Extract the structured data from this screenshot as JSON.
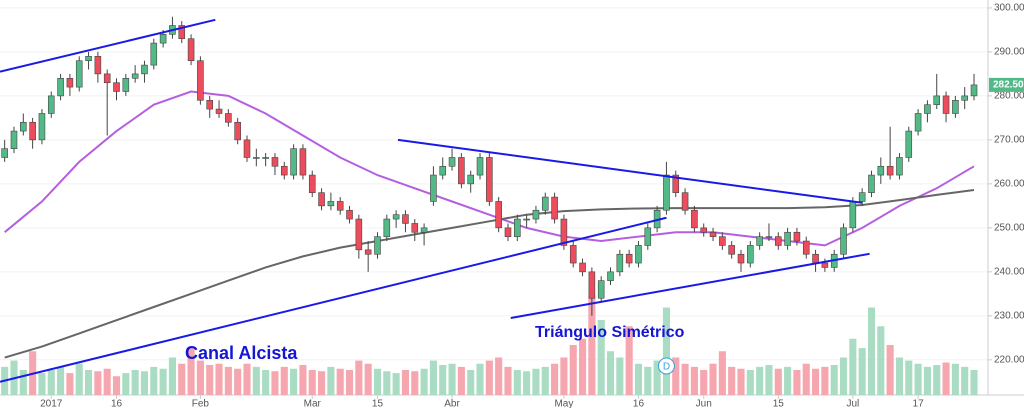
{
  "chart_data": {
    "type": "candlestick",
    "xlim": [
      -0.5,
      105.5
    ],
    "xticks": [
      {
        "value": 5,
        "label": "2017"
      },
      {
        "value": 12,
        "label": "16"
      },
      {
        "value": 21,
        "label": "Feb"
      },
      {
        "value": 33,
        "label": "Mar"
      },
      {
        "value": 40,
        "label": "15"
      },
      {
        "value": 48,
        "label": "Abr"
      },
      {
        "value": 60,
        "label": "May"
      },
      {
        "value": 68,
        "label": "16"
      },
      {
        "value": 75,
        "label": "Jun"
      },
      {
        "value": 83,
        "label": "15"
      },
      {
        "value": 91,
        "label": "Jul"
      },
      {
        "value": 98,
        "label": "17"
      }
    ],
    "ylim": [
      212,
      301.8
    ],
    "yticks": [
      {
        "value": 220,
        "label": "220.00"
      },
      {
        "value": 230,
        "label": "230.00"
      },
      {
        "value": 240,
        "label": "240.00"
      },
      {
        "value": 250,
        "label": "250.00"
      },
      {
        "value": 260,
        "label": "260.00"
      },
      {
        "value": 270,
        "label": "270.00"
      },
      {
        "value": 280,
        "label": "280.00"
      },
      {
        "value": 290,
        "label": "290.00"
      },
      {
        "value": 300,
        "label": "300.00"
      }
    ],
    "grid": true,
    "up_color": "#53b987",
    "down_color": "#eb4d5c",
    "volume_up_color": "#a9dcc3",
    "volume_down_color": "#f5a6ae",
    "ohlc": [
      [
        266,
        270,
        265,
        268
      ],
      [
        268,
        273,
        267,
        272
      ],
      [
        272,
        276,
        271,
        274
      ],
      [
        274,
        275,
        268,
        270
      ],
      [
        270,
        277,
        269,
        276
      ],
      [
        276,
        281,
        275,
        280
      ],
      [
        280,
        285,
        279,
        284
      ],
      [
        284,
        285,
        280,
        282
      ],
      [
        282,
        289,
        281,
        288
      ],
      [
        288,
        290,
        286,
        289
      ],
      [
        289,
        290,
        283,
        285
      ],
      [
        285,
        286,
        271,
        283
      ],
      [
        283,
        284,
        279,
        281
      ],
      [
        281,
        285,
        280,
        284
      ],
      [
        284,
        287,
        283,
        285
      ],
      [
        285,
        288,
        283,
        287
      ],
      [
        287,
        293,
        286,
        292
      ],
      [
        292,
        295,
        291,
        294
      ],
      [
        294,
        298,
        293,
        296
      ],
      [
        296,
        297,
        292,
        293
      ],
      [
        293,
        294,
        287,
        288
      ],
      [
        288,
        289,
        278,
        279
      ],
      [
        279,
        280,
        275,
        277
      ],
      [
        277,
        279,
        275,
        276
      ],
      [
        276,
        277,
        273,
        274
      ],
      [
        274,
        275,
        269,
        270
      ],
      [
        270,
        271,
        265,
        266
      ],
      [
        266,
        268,
        264,
        266
      ],
      [
        266,
        267,
        264,
        266
      ],
      [
        266,
        267,
        262,
        264
      ],
      [
        264,
        265,
        261,
        262
      ],
      [
        262,
        269,
        261,
        268
      ],
      [
        268,
        269,
        261,
        262
      ],
      [
        262,
        263,
        257,
        258
      ],
      [
        258,
        259,
        254,
        255
      ],
      [
        255,
        258,
        254,
        256
      ],
      [
        256,
        257,
        253,
        254
      ],
      [
        254,
        255,
        251,
        252
      ],
      [
        252,
        253,
        243,
        245
      ],
      [
        245,
        247,
        240,
        244
      ],
      [
        244,
        249,
        243,
        248
      ],
      [
        248,
        253,
        247,
        252
      ],
      [
        252,
        254,
        250,
        253
      ],
      [
        253,
        254,
        249,
        251
      ],
      [
        251,
        252,
        247,
        249
      ],
      [
        249,
        251,
        246,
        250
      ],
      [
        256,
        264,
        255,
        262
      ],
      [
        262,
        266,
        261,
        264
      ],
      [
        264,
        268,
        263,
        266
      ],
      [
        266,
        267,
        259,
        260
      ],
      [
        260,
        263,
        258,
        262
      ],
      [
        262,
        267,
        261,
        266
      ],
      [
        266,
        267,
        255,
        256
      ],
      [
        256,
        257,
        249,
        250
      ],
      [
        250,
        251,
        247,
        248
      ],
      [
        248,
        253,
        247,
        252
      ],
      [
        252,
        253,
        250,
        252
      ],
      [
        252,
        255,
        251,
        254
      ],
      [
        254,
        258,
        253,
        257
      ],
      [
        257,
        258,
        251,
        252
      ],
      [
        252,
        253,
        245,
        246
      ],
      [
        246,
        247,
        241,
        242
      ],
      [
        242,
        243,
        239,
        240
      ],
      [
        240,
        241,
        230,
        234
      ],
      [
        234,
        239,
        233,
        238
      ],
      [
        238,
        241,
        237,
        240
      ],
      [
        240,
        245,
        239,
        244
      ],
      [
        244,
        245,
        241,
        242
      ],
      [
        242,
        247,
        241,
        246
      ],
      [
        246,
        251,
        245,
        250
      ],
      [
        250,
        255,
        249,
        254
      ],
      [
        254,
        265,
        253,
        262
      ],
      [
        262,
        263,
        257,
        258
      ],
      [
        258,
        259,
        253,
        254
      ],
      [
        254,
        255,
        249,
        250
      ],
      [
        250,
        251,
        248,
        249
      ],
      [
        249,
        250,
        247,
        248
      ],
      [
        248,
        249,
        245,
        246
      ],
      [
        246,
        247,
        243,
        244
      ],
      [
        244,
        245,
        240,
        242
      ],
      [
        242,
        247,
        241,
        246
      ],
      [
        246,
        249,
        245,
        248
      ],
      [
        248,
        251,
        247,
        248
      ],
      [
        248,
        249,
        245,
        246
      ],
      [
        246,
        250,
        245,
        249
      ],
      [
        249,
        250,
        246,
        247
      ],
      [
        247,
        248,
        243,
        244
      ],
      [
        244,
        245,
        240,
        242
      ],
      [
        242,
        243,
        240,
        241
      ],
      [
        241,
        245,
        240,
        244
      ],
      [
        244,
        251,
        243,
        250
      ],
      [
        250,
        257,
        249,
        256
      ],
      [
        256,
        259,
        255,
        258
      ],
      [
        258,
        263,
        257,
        262
      ],
      [
        262,
        266,
        260,
        264
      ],
      [
        264,
        273,
        261,
        262
      ],
      [
        262,
        267,
        261,
        266
      ],
      [
        266,
        273,
        265,
        272
      ],
      [
        272,
        277,
        271,
        276
      ],
      [
        276,
        279,
        274,
        278
      ],
      [
        278,
        285,
        277,
        280
      ],
      [
        280,
        281,
        274,
        276
      ],
      [
        276,
        280,
        275,
        279
      ],
      [
        279,
        282,
        277,
        280
      ],
      [
        280,
        285,
        279,
        282.5
      ]
    ],
    "volume": [
      45,
      55,
      40,
      70,
      35,
      40,
      45,
      35,
      50,
      40,
      38,
      42,
      30,
      35,
      40,
      38,
      45,
      42,
      60,
      50,
      75,
      55,
      48,
      50,
      45,
      42,
      50,
      45,
      40,
      38,
      45,
      42,
      48,
      40,
      38,
      45,
      42,
      40,
      55,
      50,
      42,
      38,
      35,
      40,
      38,
      42,
      55,
      48,
      50,
      45,
      40,
      50,
      55,
      60,
      45,
      40,
      38,
      42,
      45,
      50,
      60,
      80,
      90,
      160,
      120,
      70,
      60,
      110,
      50,
      45,
      55,
      140,
      60,
      50,
      45,
      40,
      50,
      70,
      45,
      42,
      40,
      45,
      48,
      42,
      45,
      40,
      50,
      42,
      45,
      48,
      60,
      90,
      75,
      140,
      110,
      80,
      60,
      55,
      50,
      45,
      48,
      52,
      50,
      45,
      40
    ],
    "moving_averages": [
      {
        "color": "#b55fe0",
        "x": [
          0,
          4,
          8,
          12,
          16,
          20,
          24,
          28,
          32,
          36,
          40,
          44,
          48,
          52,
          56,
          60,
          64,
          68,
          72,
          76,
          80,
          84,
          88,
          92,
          96,
          100,
          104
        ],
        "values": [
          249,
          256,
          265,
          272,
          278,
          281,
          280,
          276,
          271,
          266,
          262,
          259,
          256,
          253,
          250,
          248,
          247,
          248,
          249,
          249,
          248,
          247,
          246,
          250,
          255,
          259,
          264
        ]
      },
      {
        "color": "#666666",
        "x": [
          0,
          4,
          8,
          12,
          16,
          20,
          24,
          28,
          32,
          36,
          40,
          44,
          48,
          52,
          56,
          60,
          64,
          68,
          72,
          76,
          80,
          84,
          88,
          92,
          96,
          100,
          104
        ],
        "values": [
          220.5,
          223,
          226,
          229,
          232,
          235,
          238,
          241,
          243.5,
          245.5,
          247,
          248.5,
          250,
          251.5,
          253,
          253.8,
          254.2,
          254.4,
          254.5,
          254.5,
          254.5,
          254.5,
          254.7,
          255.2,
          256.3,
          257.5,
          258.6
        ]
      }
    ],
    "trendlines": [
      {
        "color": "#1a1ae6",
        "x": [
          -0.5,
          22.6
        ],
        "y": [
          285.5,
          297.3
        ]
      },
      {
        "color": "#1a1ae6",
        "x": [
          -0.5,
          71
        ],
        "y": [
          215,
          252.3
        ]
      },
      {
        "color": "#1a1ae6",
        "x": [
          42.2,
          92
        ],
        "y": [
          270,
          255.7
        ]
      },
      {
        "color": "#1a1ae6",
        "x": [
          54.3,
          92.8
        ],
        "y": [
          229.5,
          244.1
        ]
      }
    ],
    "annotations": [
      "Canal Alcista",
      "Triángulo Simétrico"
    ],
    "event": {
      "x": 71,
      "label": "D"
    },
    "last_price": {
      "value": 282.5,
      "label": "282.50"
    }
  }
}
